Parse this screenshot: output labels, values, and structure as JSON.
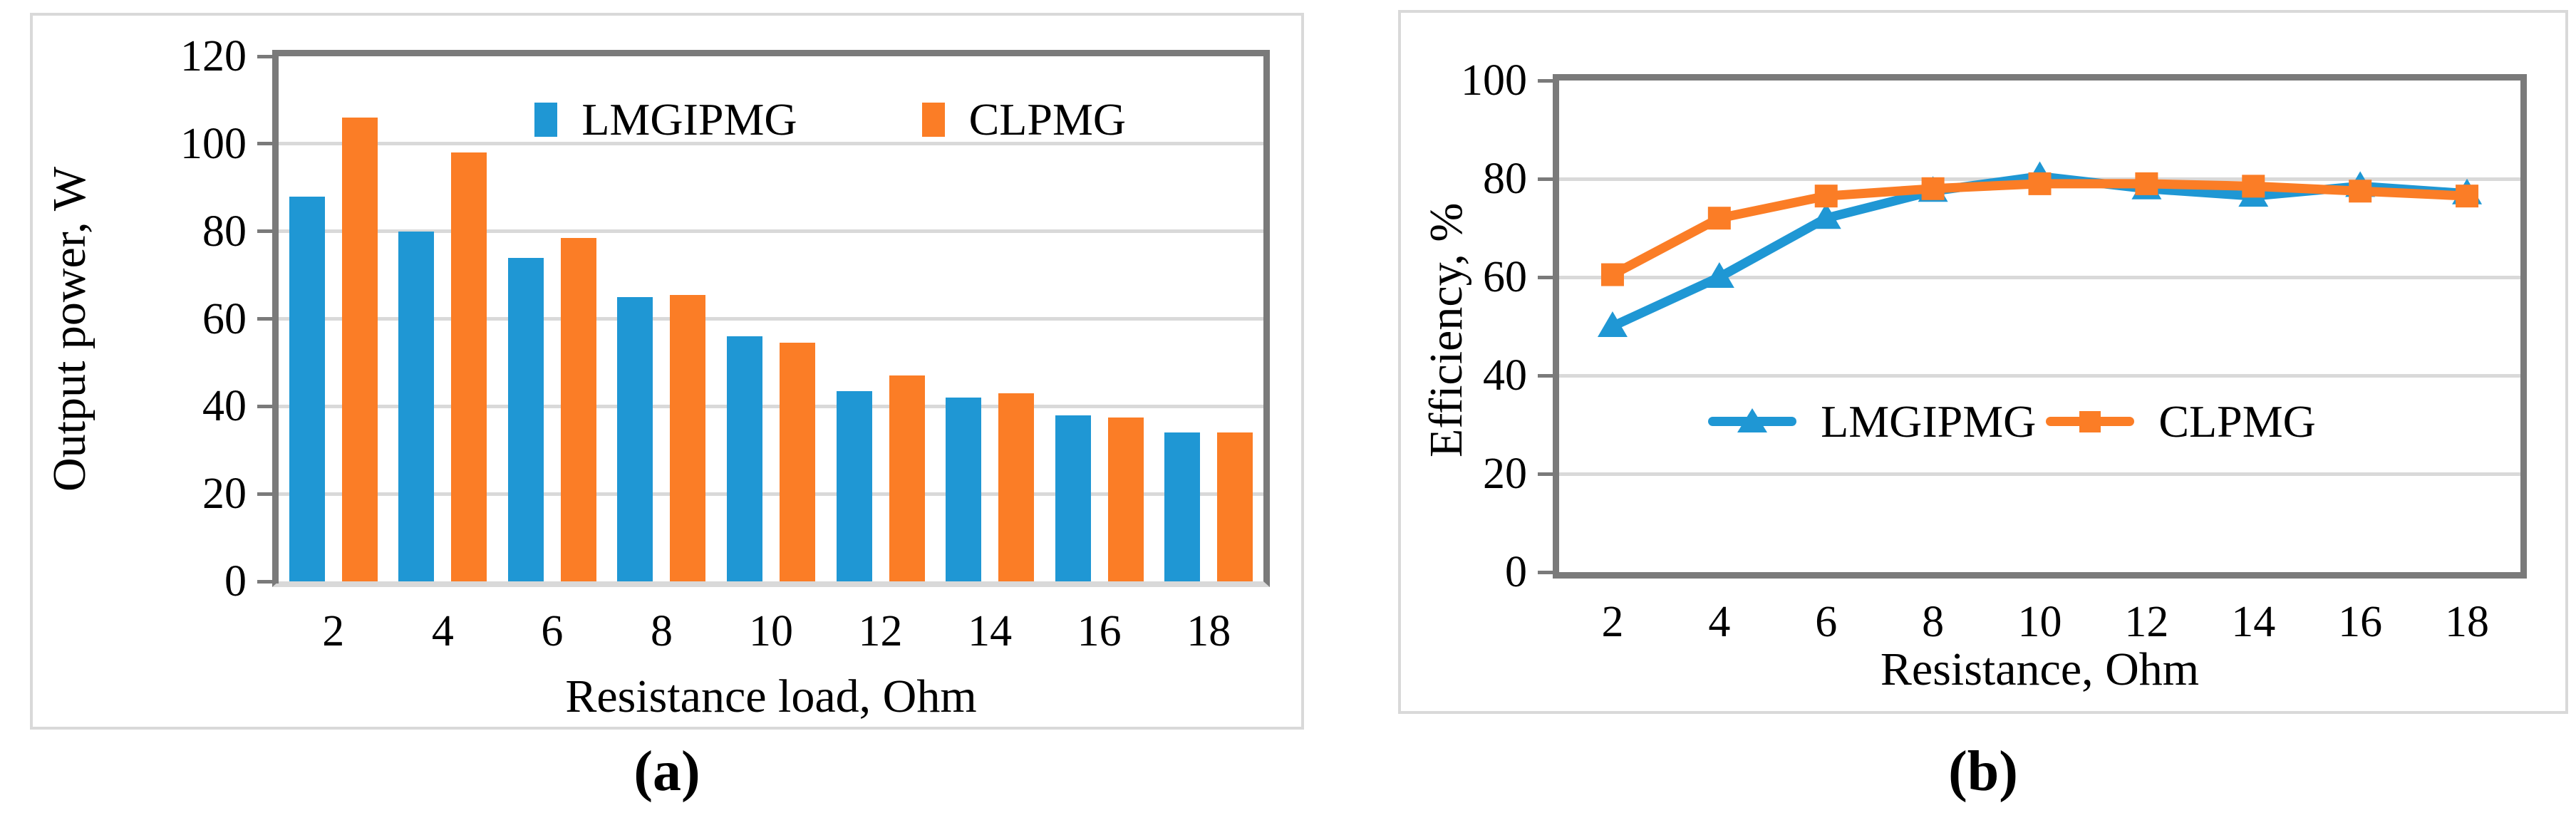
{
  "figure": {
    "captions": {
      "a": "(a)",
      "b": "(b)"
    },
    "colors": {
      "lmgipmg": "#1f97d4",
      "clpmg": "#fb7d26",
      "gridline": "#d9d9d9",
      "axis": "#7a7a7a",
      "panel_border": "#d9d9d9",
      "background": "#ffffff"
    }
  },
  "chart_data": [
    {
      "id": "a",
      "type": "bar",
      "title": "",
      "xlabel": "Resistance load, Ohm",
      "ylabel": "Output power, W",
      "categories": [
        "2",
        "4",
        "6",
        "8",
        "10",
        "12",
        "14",
        "16",
        "18"
      ],
      "ylim": [
        0,
        120
      ],
      "yticks": [
        0,
        20,
        40,
        60,
        80,
        100,
        120
      ],
      "grid": true,
      "legend_position": "top-center-inside",
      "series": [
        {
          "name": "LMGIPMG",
          "color": "#1f97d4",
          "values": [
            88,
            80,
            74,
            65,
            56,
            43.5,
            42,
            38,
            34
          ]
        },
        {
          "name": "CLPMG",
          "color": "#fb7d26",
          "values": [
            106,
            98,
            78.5,
            65.5,
            54.5,
            47,
            43,
            37.5,
            34
          ]
        }
      ]
    },
    {
      "id": "b",
      "type": "line",
      "title": "",
      "xlabel": "Resistance, Ohm",
      "ylabel": "Efficiency, %",
      "categories": [
        "2",
        "4",
        "6",
        "8",
        "10",
        "12",
        "14",
        "16",
        "18"
      ],
      "ylim": [
        0,
        100
      ],
      "yticks": [
        0,
        20,
        40,
        60,
        80,
        100
      ],
      "grid": true,
      "legend_position": "center-inside",
      "series": [
        {
          "name": "LMGIPMG",
          "color": "#1f97d4",
          "marker": "triangle",
          "values": [
            50,
            60,
            72,
            77.5,
            80.5,
            78,
            76.5,
            78.5,
            77
          ]
        },
        {
          "name": "CLPMG",
          "color": "#fb7d26",
          "marker": "square",
          "values": [
            60.5,
            72,
            76.5,
            78,
            79,
            79,
            78.5,
            77.5,
            76.5
          ]
        }
      ]
    }
  ]
}
